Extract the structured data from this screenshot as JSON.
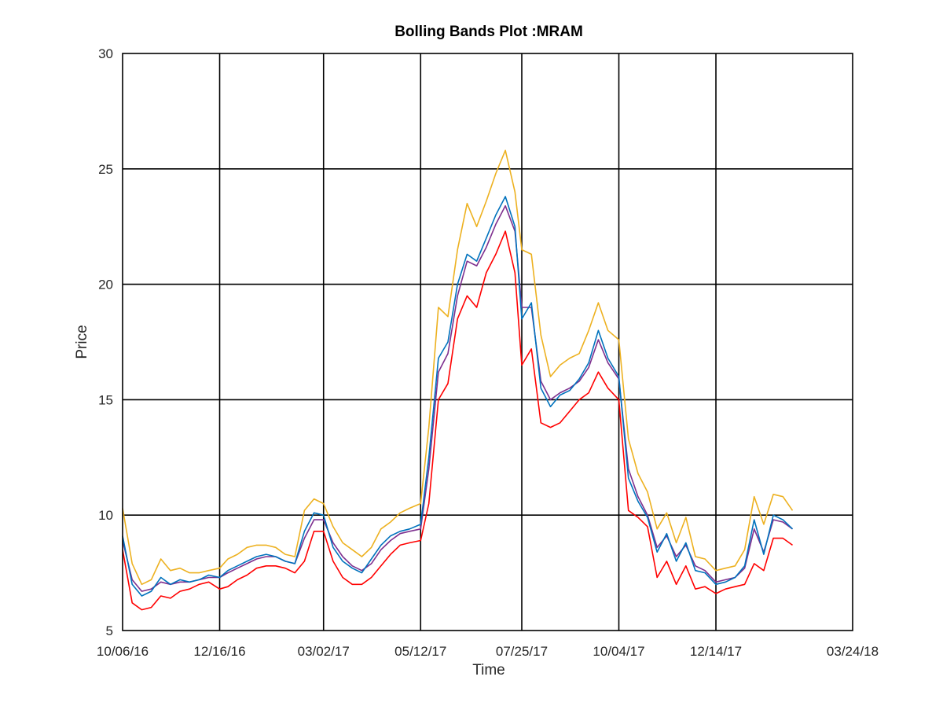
{
  "chart_data": {
    "type": "line",
    "title": "Bolling Bands Plot :MRAM",
    "xlabel": "Time",
    "ylabel": "Price",
    "ylim": [
      5,
      30
    ],
    "yticks": [
      5,
      10,
      15,
      20,
      25,
      30
    ],
    "xlim": [
      "2016-10-06",
      "2018-03-24"
    ],
    "xticks": [
      "10/06/16",
      "12/16/16",
      "03/02/17",
      "05/12/17",
      "07/25/17",
      "10/04/17",
      "12/14/17",
      "03/24/18"
    ],
    "grid": true,
    "colors": {
      "price": "#0072bd",
      "middle": "#7e2f8e",
      "lower": "#ff0000",
      "upper": "#edb120"
    },
    "x": [
      "2016-10-06",
      "2016-10-13",
      "2016-10-20",
      "2016-10-27",
      "2016-11-03",
      "2016-11-10",
      "2016-11-17",
      "2016-11-24",
      "2016-12-01",
      "2016-12-08",
      "2016-12-16",
      "2016-12-22",
      "2016-12-29",
      "2017-01-05",
      "2017-01-12",
      "2017-01-19",
      "2017-01-26",
      "2017-02-02",
      "2017-02-09",
      "2017-02-16",
      "2017-02-23",
      "2017-03-02",
      "2017-03-09",
      "2017-03-16",
      "2017-03-23",
      "2017-03-30",
      "2017-04-06",
      "2017-04-13",
      "2017-04-20",
      "2017-04-27",
      "2017-05-04",
      "2017-05-12",
      "2017-05-18",
      "2017-05-25",
      "2017-06-01",
      "2017-06-08",
      "2017-06-15",
      "2017-06-22",
      "2017-06-29",
      "2017-07-06",
      "2017-07-13",
      "2017-07-20",
      "2017-07-25",
      "2017-08-01",
      "2017-08-08",
      "2017-08-15",
      "2017-08-22",
      "2017-08-29",
      "2017-09-05",
      "2017-09-12",
      "2017-09-19",
      "2017-09-26",
      "2017-10-04",
      "2017-10-11",
      "2017-10-18",
      "2017-10-25",
      "2017-11-01",
      "2017-11-08",
      "2017-11-15",
      "2017-11-22",
      "2017-11-29",
      "2017-12-06",
      "2017-12-14",
      "2017-12-21",
      "2017-12-28",
      "2018-01-04",
      "2018-01-11",
      "2018-01-18",
      "2018-01-25",
      "2018-02-01",
      "2018-02-08"
    ],
    "series": [
      {
        "key": "price",
        "values": [
          9.1,
          7.0,
          6.5,
          6.7,
          7.3,
          7.0,
          7.2,
          7.1,
          7.2,
          7.4,
          7.3,
          7.6,
          7.8,
          8.0,
          8.2,
          8.3,
          8.2,
          8.0,
          7.9,
          9.3,
          10.1,
          10.0,
          8.6,
          8.0,
          7.7,
          7.5,
          8.1,
          8.7,
          9.1,
          9.3,
          9.4,
          9.6,
          12.5,
          16.8,
          17.5,
          20.0,
          21.3,
          21.0,
          22.0,
          23.0,
          23.8,
          22.5,
          18.5,
          19.2,
          15.5,
          14.7,
          15.2,
          15.4,
          15.9,
          16.6,
          18.0,
          16.8,
          16.0,
          11.6,
          10.6,
          9.9,
          8.4,
          9.2,
          8.0,
          8.8,
          7.6,
          7.5,
          7.0,
          7.1,
          7.3,
          7.8,
          9.8,
          8.3,
          10.0,
          9.8,
          9.4
        ]
      },
      {
        "key": "middle",
        "values": [
          8.9,
          7.2,
          6.7,
          6.8,
          7.1,
          7.0,
          7.1,
          7.1,
          7.2,
          7.3,
          7.3,
          7.5,
          7.7,
          7.9,
          8.1,
          8.2,
          8.2,
          8.0,
          7.9,
          9.0,
          9.8,
          9.8,
          8.8,
          8.2,
          7.8,
          7.6,
          7.9,
          8.5,
          8.9,
          9.2,
          9.3,
          9.4,
          12.0,
          16.2,
          17.0,
          19.5,
          21.0,
          20.8,
          21.6,
          22.6,
          23.4,
          22.3,
          19.0,
          19.0,
          15.8,
          15.0,
          15.3,
          15.5,
          15.8,
          16.4,
          17.6,
          16.6,
          15.9,
          12.0,
          10.8,
          10.0,
          8.6,
          9.1,
          8.2,
          8.7,
          7.8,
          7.6,
          7.1,
          7.2,
          7.3,
          7.7,
          9.4,
          8.4,
          9.8,
          9.7,
          9.4
        ]
      },
      {
        "key": "lower",
        "values": [
          8.5,
          6.2,
          5.9,
          6.0,
          6.5,
          6.4,
          6.7,
          6.8,
          7.0,
          7.1,
          6.8,
          6.9,
          7.2,
          7.4,
          7.7,
          7.8,
          7.8,
          7.7,
          7.5,
          8.0,
          9.3,
          9.3,
          8.0,
          7.3,
          7.0,
          7.0,
          7.3,
          7.8,
          8.3,
          8.7,
          8.8,
          8.9,
          10.5,
          15.0,
          15.7,
          18.5,
          19.5,
          19.0,
          20.5,
          21.3,
          22.3,
          20.5,
          16.5,
          17.2,
          14.0,
          13.8,
          14.0,
          14.5,
          15.0,
          15.3,
          16.2,
          15.5,
          15.0,
          10.2,
          9.9,
          9.5,
          7.3,
          8.0,
          7.0,
          7.8,
          6.8,
          6.9,
          6.6,
          6.8,
          6.9,
          7.0,
          7.9,
          7.6,
          9.0,
          9.0,
          8.7
        ]
      },
      {
        "key": "upper",
        "values": [
          10.3,
          7.9,
          7.0,
          7.2,
          8.1,
          7.6,
          7.7,
          7.5,
          7.5,
          7.6,
          7.7,
          8.1,
          8.3,
          8.6,
          8.7,
          8.7,
          8.6,
          8.3,
          8.2,
          10.2,
          10.7,
          10.5,
          9.5,
          8.8,
          8.5,
          8.2,
          8.6,
          9.4,
          9.7,
          10.1,
          10.3,
          10.5,
          13.8,
          19.0,
          18.6,
          21.5,
          23.5,
          22.5,
          23.6,
          24.8,
          25.8,
          24.0,
          21.5,
          21.3,
          17.8,
          16.0,
          16.5,
          16.8,
          17.0,
          18.0,
          19.2,
          18.0,
          17.6,
          13.3,
          11.8,
          11.0,
          9.4,
          10.1,
          8.8,
          9.9,
          8.2,
          8.1,
          7.6,
          7.7,
          7.8,
          8.5,
          10.8,
          9.6,
          10.9,
          10.8,
          10.2
        ]
      }
    ]
  }
}
